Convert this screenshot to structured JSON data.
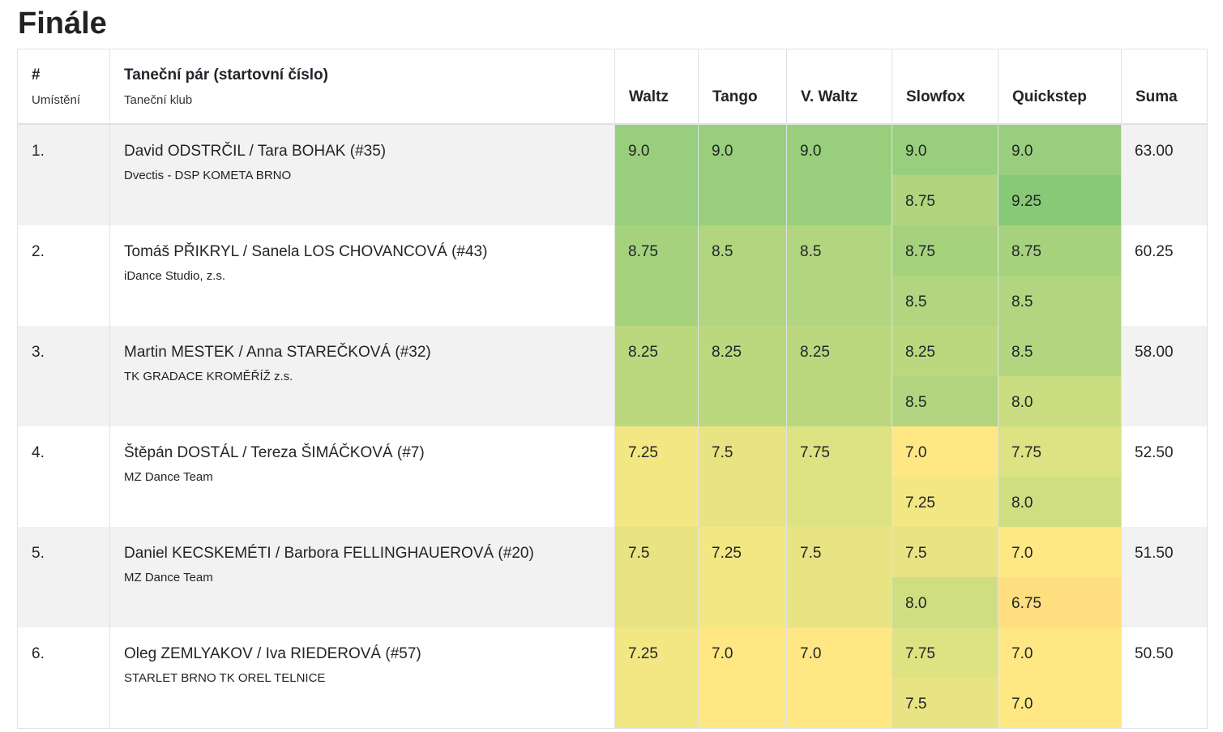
{
  "page": {
    "title": "Finále"
  },
  "header": {
    "hash": "#",
    "placement": "Umístění",
    "couple": "Taneční pár (startovní číslo)",
    "club": "Taneční klub",
    "dances": [
      "Waltz",
      "Tango",
      "V. Waltz",
      "Slowfox",
      "Quickstep"
    ],
    "sum": "Suma"
  },
  "rows": [
    {
      "place": "1.",
      "couple": "David ODSTRČIL / Tara BOHAK (#35)",
      "club": "Dvectis - DSP KOMETA BRNO",
      "waltz": "9.0",
      "tango": "9.0",
      "vwaltz": "9.0",
      "slowfox": [
        "9.0",
        "8.75"
      ],
      "quickstep": [
        "9.0",
        "9.25"
      ],
      "sum": "63.00",
      "colors": {
        "waltz": "#99cf7c",
        "tango": "#99cf7c",
        "vwaltz": "#99cf7c",
        "slowfox": [
          "#99cf7c",
          "#b0d57e"
        ],
        "quickstep": [
          "#99cf7c",
          "#88c977"
        ]
      }
    },
    {
      "place": "2.",
      "couple": "Tomáš PŘIKRYL / Sanela LOS CHOVANCOVÁ (#43)",
      "club": "iDance Studio, z.s.",
      "waltz": "8.75",
      "tango": "8.5",
      "vwaltz": "8.5",
      "slowfox": [
        "8.75",
        "8.5"
      ],
      "quickstep": [
        "8.75",
        "8.5"
      ],
      "sum": "60.25",
      "colors": {
        "waltz": "#a6d27d",
        "tango": "#b1d67f",
        "vwaltz": "#b1d67f",
        "slowfox": [
          "#a6d27d",
          "#b1d67f"
        ],
        "quickstep": [
          "#a6d27d",
          "#b1d67f"
        ]
      }
    },
    {
      "place": "3.",
      "couple": "Martin MESTEK / Anna STAREČKOVÁ (#32)",
      "club": "TK GRADACE KROMĚŘÍŽ z.s.",
      "waltz": "8.25",
      "tango": "8.25",
      "vwaltz": "8.25",
      "slowfox": [
        "8.25",
        "8.5"
      ],
      "quickstep": [
        "8.5",
        "8.0"
      ],
      "sum": "58.00",
      "colors": {
        "waltz": "#bcd87f",
        "tango": "#bcd87f",
        "vwaltz": "#bcd87f",
        "slowfox": [
          "#bcd87f",
          "#b1d67f"
        ],
        "quickstep": [
          "#b1d67f",
          "#cadd80"
        ]
      }
    },
    {
      "place": "4.",
      "couple": "Štěpán DOSTÁL / Tereza ŠIMÁČKOVÁ (#7)",
      "club": "MZ Dance Team",
      "waltz": "7.25",
      "tango": "7.5",
      "vwaltz": "7.75",
      "slowfox": [
        "7.0",
        "7.25"
      ],
      "quickstep": [
        "7.75",
        "8.0"
      ],
      "sum": "52.50",
      "colors": {
        "waltz": "#f3e784",
        "tango": "#e8e383",
        "vwaltz": "#dde282",
        "slowfox": [
          "#ffe883",
          "#f3e784"
        ],
        "quickstep": [
          "#dde282",
          "#cfde81"
        ]
      }
    },
    {
      "place": "5.",
      "couple": "Daniel KECSKEMÉTI / Barbora FELLINGHAUEROVÁ (#20)",
      "club": "MZ Dance Team",
      "waltz": "7.5",
      "tango": "7.25",
      "vwaltz": "7.5",
      "slowfox": [
        "7.5",
        "8.0"
      ],
      "quickstep": [
        "7.0",
        "6.75"
      ],
      "sum": "51.50",
      "colors": {
        "waltz": "#e8e383",
        "tango": "#f3e784",
        "vwaltz": "#e8e383",
        "slowfox": [
          "#e8e383",
          "#cfde81"
        ],
        "quickstep": [
          "#ffe883",
          "#fede7f"
        ]
      }
    },
    {
      "place": "6.",
      "couple": "Oleg ZEMLYAKOV / Iva RIEDEROVÁ (#57)",
      "club": "STARLET BRNO TK OREL TELNICE",
      "waltz": "7.25",
      "tango": "7.0",
      "vwaltz": "7.0",
      "slowfox": [
        "7.75",
        "7.5"
      ],
      "quickstep": [
        "7.0",
        "7.0"
      ],
      "sum": "50.50",
      "colors": {
        "waltz": "#f3e784",
        "tango": "#ffe883",
        "vwaltz": "#ffe883",
        "slowfox": [
          "#dde282",
          "#e8e383"
        ],
        "quickstep": [
          "#ffe883",
          "#ffe883"
        ]
      }
    }
  ]
}
